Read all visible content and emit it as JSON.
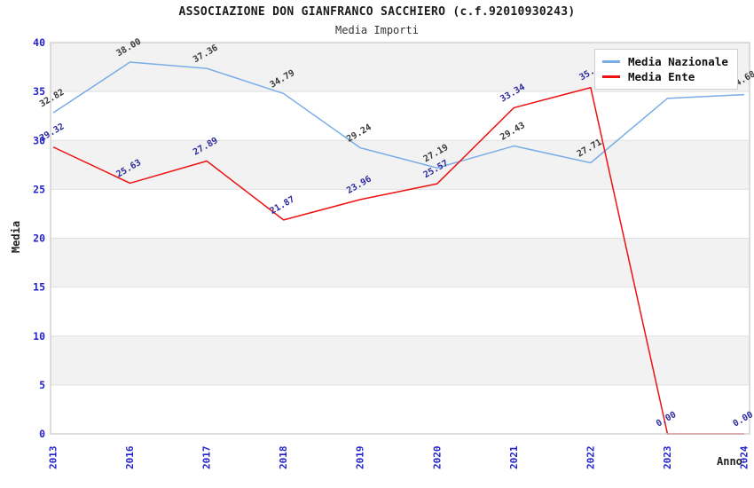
{
  "title": "ASSOCIAZIONE DON GIANFRANCO SACCHIERO (c.f.92010930243)",
  "subtitle": "Media Importi",
  "axes": {
    "y_label": "Media",
    "x_label": "Anno",
    "y_ticks": [
      0,
      5,
      10,
      15,
      20,
      25,
      30,
      35,
      40
    ],
    "x_ticks": [
      "2013",
      "2016",
      "2017",
      "2018",
      "2019",
      "2020",
      "2021",
      "2022",
      "2023",
      "2024"
    ]
  },
  "legend": {
    "position": "top-right",
    "items": [
      {
        "label": "Media Nazionale",
        "color": "#7aade6"
      },
      {
        "label": "Media Ente",
        "color": "#ee1111"
      }
    ]
  },
  "colors": {
    "nazionale_line": "#7aade6",
    "ente_line": "#ee1111",
    "axis_tick_text": "#2222cc",
    "nazionale_point_label": "#3a3a3a",
    "ente_point_label": "#2b2b9c",
    "band_gray": "#f2f2f2",
    "grid_line": "#e0e0e0",
    "plot_border": "#c8c8c8"
  },
  "chart_data": {
    "type": "line",
    "title": "ASSOCIAZIONE DON GIANFRANCO SACCHIERO (c.f.92010930243)",
    "subtitle": "Media Importi",
    "xlabel": "Anno",
    "ylabel": "Media",
    "ylim": [
      0,
      40
    ],
    "grid": "horizontal",
    "legend_position": "top-right",
    "gray_bands": [
      [
        35,
        40
      ],
      [
        25,
        30
      ],
      [
        15,
        20
      ],
      [
        5,
        10
      ]
    ],
    "categories": [
      "2013",
      "2016",
      "2017",
      "2018",
      "2019",
      "2020",
      "2021",
      "2022",
      "2023",
      "2024"
    ],
    "series": [
      {
        "name": "Media Nazionale",
        "color": "#7aade6",
        "label_color": "#3a3a3a",
        "values": [
          32.82,
          38.0,
          37.36,
          34.79,
          29.24,
          27.19,
          29.43,
          27.71,
          34.3,
          34.68
        ],
        "labels": [
          "32.82",
          "38.00",
          "37.36",
          "34.79",
          "29.24",
          "27.19",
          "29.43",
          "27.71",
          "",
          "34.68"
        ],
        "note": "2023 label hidden behind legend in source image"
      },
      {
        "name": "Media Ente",
        "color": "#ee1111",
        "label_color": "#2b2b9c",
        "values": [
          29.32,
          25.63,
          27.89,
          21.87,
          23.96,
          25.57,
          33.34,
          35.4,
          0,
          0
        ],
        "labels": [
          "29.32",
          "25.63",
          "27.89",
          "21.87",
          "23.96",
          "25.57",
          "33.34",
          "35.4",
          "0.00",
          "0.00"
        ],
        "note": "2022 label partially hidden behind legend in source image"
      }
    ]
  }
}
